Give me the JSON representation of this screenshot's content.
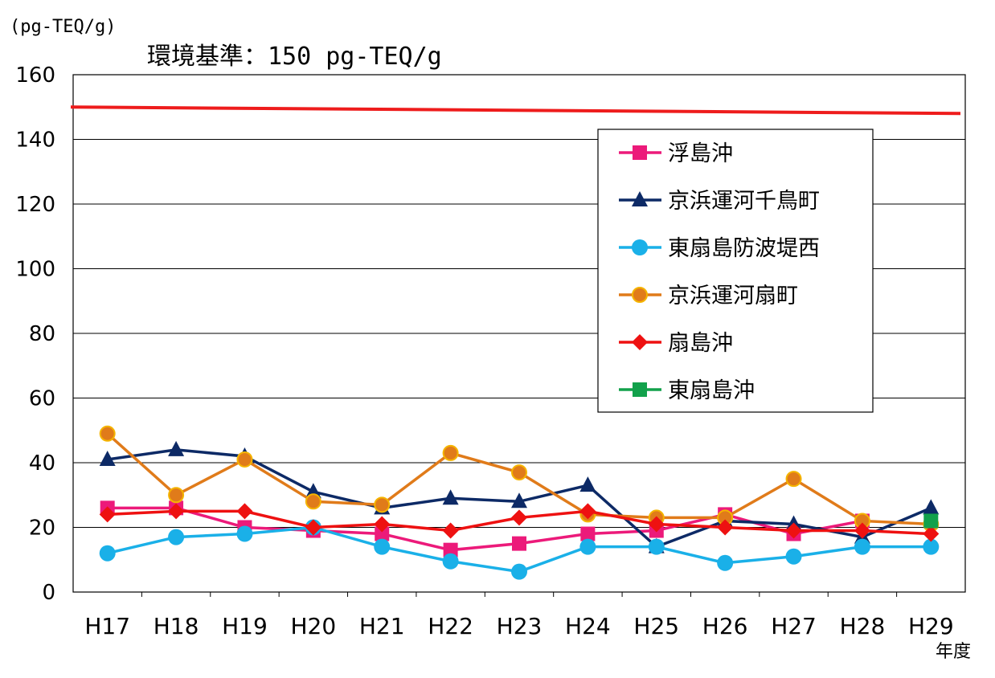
{
  "chart_data": {
    "type": "line",
    "y_unit": "(pg-TEQ/g)",
    "x_unit": "年度",
    "standard_label": "環境基準：150 pg-TEQ/g",
    "standard_value": 150,
    "standard_color": "#ee1c1c",
    "categories": [
      "H17",
      "H18",
      "H19",
      "H20",
      "H21",
      "H22",
      "H23",
      "H24",
      "H25",
      "H26",
      "H27",
      "H28",
      "H29"
    ],
    "ylim": [
      0,
      160
    ],
    "yticks": [
      0,
      20,
      40,
      60,
      80,
      100,
      120,
      140,
      160
    ],
    "grid": true,
    "legend_position": "top-right",
    "series": [
      {
        "name": "浮島沖",
        "color": "#ec1a7a",
        "marker": "square",
        "values": [
          26,
          26,
          20,
          19,
          18,
          13,
          15,
          18,
          19,
          24,
          18,
          22,
          null
        ]
      },
      {
        "name": "京浜運河千鳥町",
        "color": "#0d2a66",
        "marker": "triangle",
        "values": [
          41,
          44,
          42,
          31,
          26,
          29,
          28,
          33,
          14,
          22,
          21,
          17,
          26
        ]
      },
      {
        "name": "東扇島防波堤西",
        "color": "#1ab0e8",
        "marker": "circle",
        "values": [
          12,
          17,
          18,
          20,
          14,
          9.5,
          6.3,
          14,
          14,
          9,
          11,
          14,
          14
        ]
      },
      {
        "name": "京浜運河扇町",
        "color": "#e07b1a",
        "marker": "circle-outline",
        "values": [
          49,
          30,
          41,
          28,
          27,
          43,
          37,
          24,
          23,
          23,
          35,
          22,
          21
        ]
      },
      {
        "name": "扇島沖",
        "color": "#ee1111",
        "marker": "diamond",
        "values": [
          24,
          25,
          25,
          20,
          21,
          19,
          23,
          25,
          21,
          20,
          19,
          19,
          18
        ]
      },
      {
        "name": "東扇島沖",
        "color": "#12a14b",
        "marker": "square",
        "values": [
          null,
          null,
          null,
          null,
          null,
          null,
          null,
          null,
          null,
          null,
          null,
          null,
          22
        ]
      }
    ]
  }
}
